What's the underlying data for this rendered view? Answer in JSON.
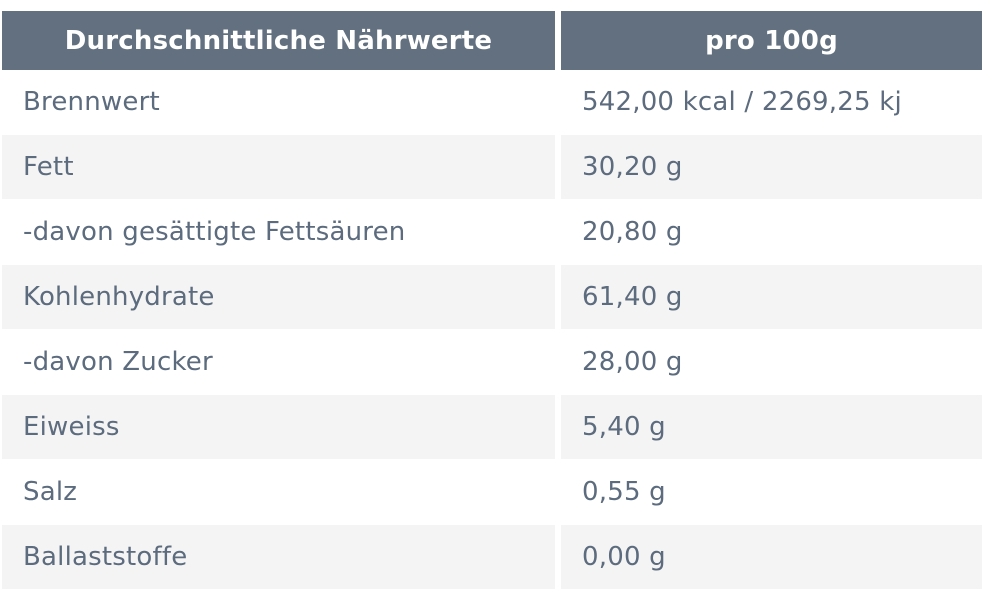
{
  "table": {
    "headers": [
      "Durchschnittliche Nährwerte",
      "pro 100g"
    ],
    "rows": [
      [
        "Brennwert",
        "542,00 kcal / 2269,25 kj"
      ],
      [
        "Fett",
        "30,20 g"
      ],
      [
        "-davon gesättigte Fettsäuren",
        "20,80 g"
      ],
      [
        "Kohlenhydrate",
        "61,40 g"
      ],
      [
        "-davon Zucker",
        "28,00 g"
      ],
      [
        "Eiweiss",
        "5,40 g"
      ],
      [
        "Salz",
        "0,55 g"
      ],
      [
        "Ballaststoffe",
        "0,00 g"
      ]
    ]
  },
  "colors": {
    "header_bg": "#62707f",
    "header_text": "#ffffff",
    "body_text": "#5c6b7d",
    "stripe_bg": "#f4f4f4"
  }
}
